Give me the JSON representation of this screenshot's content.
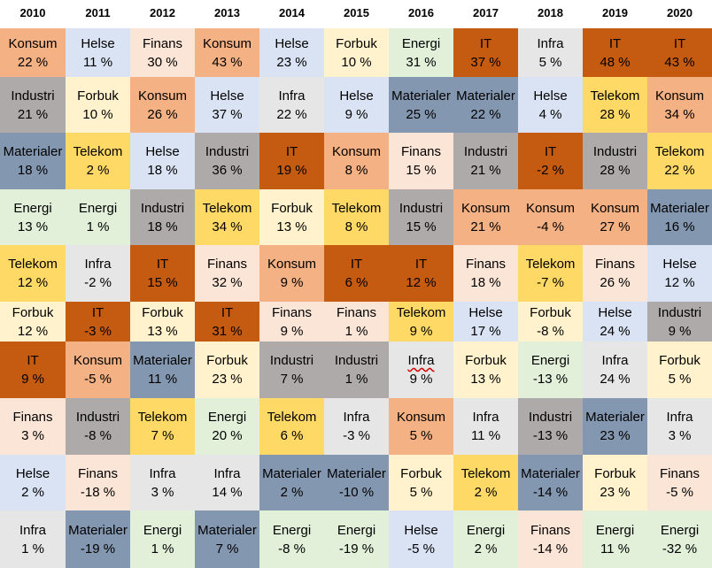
{
  "chart_data": {
    "type": "table",
    "title": "",
    "years": [
      "2010",
      "2011",
      "2012",
      "2013",
      "2014",
      "2015",
      "2016",
      "2017",
      "2018",
      "2019",
      "2020"
    ],
    "sector_colors": {
      "Konsum": "#f4b183",
      "Helse": "#dae3f3",
      "Finans": "#fbe5d6",
      "Forbuk": "#fff2cc",
      "Energi": "#e2f0d9",
      "IT": "#c55a11",
      "Infra": "#e7e6e6",
      "Industri": "#aeaaaa",
      "Materialer": "#8497b0",
      "Telekom": "#ffd966"
    },
    "columns": [
      [
        {
          "sector": "Konsum",
          "value": "22 %"
        },
        {
          "sector": "Industri",
          "value": "21 %"
        },
        {
          "sector": "Materialer",
          "value": "18 %"
        },
        {
          "sector": "Energi",
          "value": "13 %"
        },
        {
          "sector": "Telekom",
          "value": "12 %"
        },
        {
          "sector": "Forbuk",
          "value": "12 %"
        },
        {
          "sector": "IT",
          "value": "9 %"
        },
        {
          "sector": "Finans",
          "value": "3 %"
        },
        {
          "sector": "Helse",
          "value": "2 %"
        },
        {
          "sector": "Infra",
          "value": "1 %"
        }
      ],
      [
        {
          "sector": "Helse",
          "value": "11 %"
        },
        {
          "sector": "Forbuk",
          "value": "10 %"
        },
        {
          "sector": "Telekom",
          "value": "2 %"
        },
        {
          "sector": "Energi",
          "value": "1 %"
        },
        {
          "sector": "Infra",
          "value": "-2 %"
        },
        {
          "sector": "IT",
          "value": "-3 %"
        },
        {
          "sector": "Konsum",
          "value": "-5 %"
        },
        {
          "sector": "Industri",
          "value": "-8 %"
        },
        {
          "sector": "Finans",
          "value": "-18 %"
        },
        {
          "sector": "Materialer",
          "value": "-19 %"
        }
      ],
      [
        {
          "sector": "Finans",
          "value": "30 %"
        },
        {
          "sector": "Konsum",
          "value": "26 %"
        },
        {
          "sector": "Helse",
          "value": "18 %"
        },
        {
          "sector": "Industri",
          "value": "18 %"
        },
        {
          "sector": "IT",
          "value": "15 %"
        },
        {
          "sector": "Forbuk",
          "value": "13 %"
        },
        {
          "sector": "Materialer",
          "value": "11 %"
        },
        {
          "sector": "Telekom",
          "value": "7 %"
        },
        {
          "sector": "Infra",
          "value": "3 %"
        },
        {
          "sector": "Energi",
          "value": "1 %"
        }
      ],
      [
        {
          "sector": "Konsum",
          "value": "43 %"
        },
        {
          "sector": "Helse",
          "value": "37 %"
        },
        {
          "sector": "Industri",
          "value": "36 %"
        },
        {
          "sector": "Telekom",
          "value": "34 %"
        },
        {
          "sector": "Finans",
          "value": "32 %"
        },
        {
          "sector": "IT",
          "value": "31 %"
        },
        {
          "sector": "Forbuk",
          "value": "23 %"
        },
        {
          "sector": "Energi",
          "value": "20 %"
        },
        {
          "sector": "Infra",
          "value": "14 %"
        },
        {
          "sector": "Materialer",
          "value": "7 %"
        }
      ],
      [
        {
          "sector": "Helse",
          "value": "23 %"
        },
        {
          "sector": "Infra",
          "value": "22 %"
        },
        {
          "sector": "IT",
          "value": "19 %"
        },
        {
          "sector": "Forbuk",
          "value": "13 %"
        },
        {
          "sector": "Konsum",
          "value": "9 %"
        },
        {
          "sector": "Finans",
          "value": "9 %"
        },
        {
          "sector": "Industri",
          "value": "7 %"
        },
        {
          "sector": "Telekom",
          "value": "6 %"
        },
        {
          "sector": "Materialer",
          "value": "2 %"
        },
        {
          "sector": "Energi",
          "value": "-8 %"
        }
      ],
      [
        {
          "sector": "Forbuk",
          "value": "10 %"
        },
        {
          "sector": "Helse",
          "value": "9 %"
        },
        {
          "sector": "Konsum",
          "value": "8 %"
        },
        {
          "sector": "Telekom",
          "value": "8 %"
        },
        {
          "sector": "IT",
          "value": "6 %"
        },
        {
          "sector": "Finans",
          "value": "1 %"
        },
        {
          "sector": "Industri",
          "value": "1 %"
        },
        {
          "sector": "Infra",
          "value": "-3 %"
        },
        {
          "sector": "Materialer",
          "value": "-10 %"
        },
        {
          "sector": "Energi",
          "value": "-19 %"
        }
      ],
      [
        {
          "sector": "Energi",
          "value": "31 %"
        },
        {
          "sector": "Materialer",
          "value": "25 %"
        },
        {
          "sector": "Finans",
          "value": "15 %"
        },
        {
          "sector": "Industri",
          "value": "15 %"
        },
        {
          "sector": "IT",
          "value": "12 %"
        },
        {
          "sector": "Telekom",
          "value": "9 %"
        },
        {
          "sector": "Infra",
          "value": "9 %"
        },
        {
          "sector": "Konsum",
          "value": "5 %"
        },
        {
          "sector": "Forbuk",
          "value": "5 %"
        },
        {
          "sector": "Helse",
          "value": "-5 %"
        }
      ],
      [
        {
          "sector": "IT",
          "value": "37 %"
        },
        {
          "sector": "Materialer",
          "value": "22 %"
        },
        {
          "sector": "Industri",
          "value": "21 %"
        },
        {
          "sector": "Konsum",
          "value": "21 %"
        },
        {
          "sector": "Finans",
          "value": "18 %"
        },
        {
          "sector": "Helse",
          "value": "17 %"
        },
        {
          "sector": "Forbuk",
          "value": "13 %"
        },
        {
          "sector": "Infra",
          "value": "11 %"
        },
        {
          "sector": "Telekom",
          "value": "2 %"
        },
        {
          "sector": "Energi",
          "value": "2 %"
        }
      ],
      [
        {
          "sector": "Infra",
          "value": "5 %"
        },
        {
          "sector": "Helse",
          "value": "4 %"
        },
        {
          "sector": "IT",
          "value": "-2 %"
        },
        {
          "sector": "Konsum",
          "value": "-4 %"
        },
        {
          "sector": "Telekom",
          "value": "-7 %"
        },
        {
          "sector": "Forbuk",
          "value": "-8 %"
        },
        {
          "sector": "Energi",
          "value": "-13 %"
        },
        {
          "sector": "Industri",
          "value": "-13 %"
        },
        {
          "sector": "Materialer",
          "value": "-14 %"
        },
        {
          "sector": "Finans",
          "value": "-14 %"
        }
      ],
      [
        {
          "sector": "IT",
          "value": "48 %"
        },
        {
          "sector": "Telekom",
          "value": "28 %"
        },
        {
          "sector": "Industri",
          "value": "28 %"
        },
        {
          "sector": "Konsum",
          "value": "27 %"
        },
        {
          "sector": "Finans",
          "value": "26 %"
        },
        {
          "sector": "Helse",
          "value": "24 %"
        },
        {
          "sector": "Infra",
          "value": "24 %"
        },
        {
          "sector": "Materialer",
          "value": "23 %"
        },
        {
          "sector": "Forbuk",
          "value": "23 %"
        },
        {
          "sector": "Energi",
          "value": "11 %"
        }
      ],
      [
        {
          "sector": "IT",
          "value": "43 %"
        },
        {
          "sector": "Konsum",
          "value": "34 %"
        },
        {
          "sector": "Telekom",
          "value": "22 %"
        },
        {
          "sector": "Materialer",
          "value": "16 %"
        },
        {
          "sector": "Helse",
          "value": "12 %"
        },
        {
          "sector": "Industri",
          "value": "9 %"
        },
        {
          "sector": "Forbuk",
          "value": "5 %"
        },
        {
          "sector": "Infra",
          "value": "3 %"
        },
        {
          "sector": "Finans",
          "value": "-5 %"
        },
        {
          "sector": "Energi",
          "value": "-32 %"
        }
      ]
    ]
  }
}
